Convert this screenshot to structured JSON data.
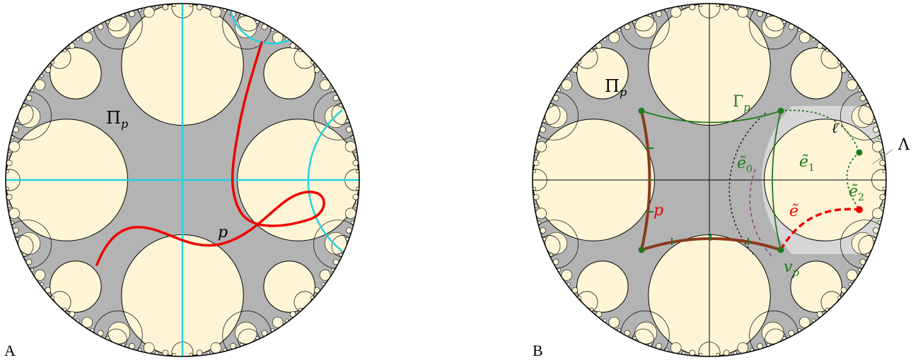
{
  "panel_a": {
    "letter": "A",
    "label_pi": "Π",
    "label_pi_sub": "p",
    "label_path": "p"
  },
  "panel_b": {
    "letter": "B",
    "label_pi": "Π",
    "label_pi_sub": "p",
    "label_gamma": "Γ",
    "label_gamma_sub": "p",
    "label_e0": "ẽ",
    "label_e0_sub": "0",
    "label_e1": "ẽ",
    "label_e1_sub": "1",
    "label_e2": "ẽ",
    "label_e2_sub": "2",
    "label_e": "ẽ",
    "label_p": "p",
    "label_v": "v",
    "label_v_sub": "p",
    "label_ell": "ℓ",
    "label_lambda": "Λ"
  },
  "colors": {
    "fundamental_domain": "#b3b3b3",
    "horodisk_fill": "#fdf5d6",
    "axis_cyan": "#22d3dd",
    "path_red": "#ee0000",
    "graph_green": "#1e7a1e",
    "path_brown": "#8b3a1a",
    "region_light_gray": "#d6d6d6",
    "purple_dashed": "#7a2a7a"
  }
}
